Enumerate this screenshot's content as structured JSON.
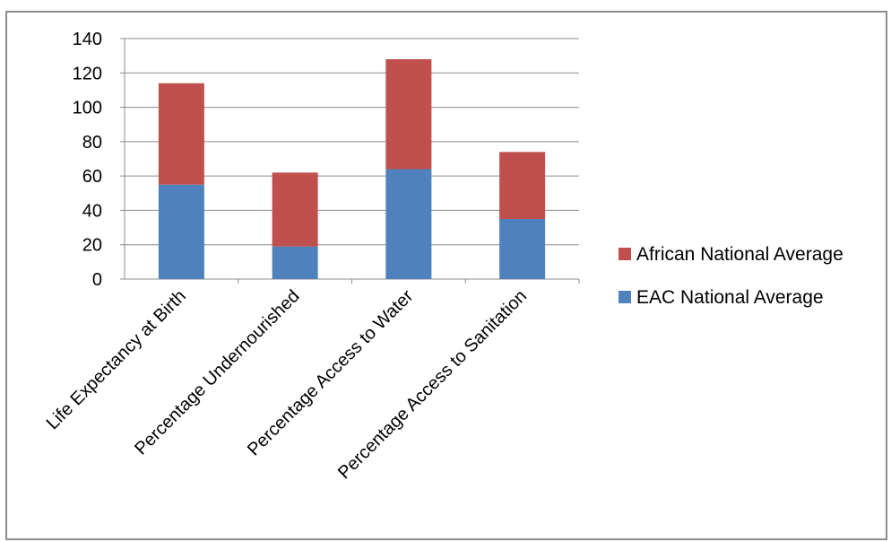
{
  "chart_data": {
    "type": "bar",
    "stacked": true,
    "categories": [
      "Life Expectancy at Birth",
      "Percentage Undernourished",
      "Percentage Access to Water",
      "Percentage Access to Sanitation"
    ],
    "series": [
      {
        "name": "EAC National Average",
        "color": "#4f81bd",
        "values": [
          55,
          19,
          64,
          35
        ]
      },
      {
        "name": "African National Average",
        "color": "#c0504d",
        "values": [
          59,
          43,
          64,
          39
        ]
      }
    ],
    "ylim": [
      0,
      140
    ],
    "yticks": [
      0,
      20,
      40,
      60,
      80,
      100,
      120,
      140
    ],
    "grid": true,
    "legend_position": "right",
    "legend_order": [
      "African National Average",
      "EAC National Average"
    ]
  }
}
